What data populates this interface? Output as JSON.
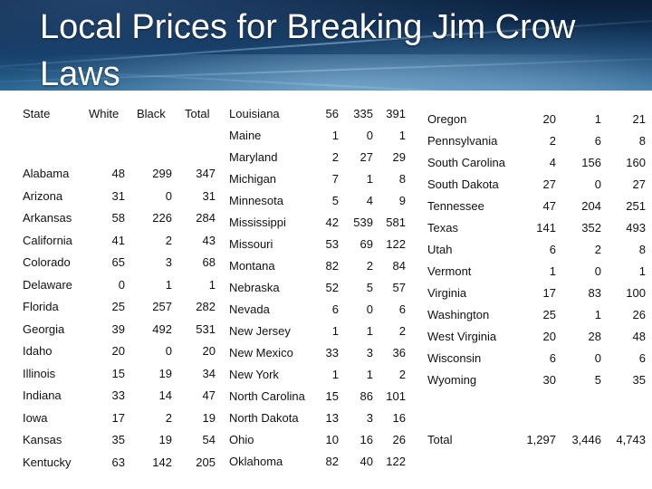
{
  "title": "Local Prices for Breaking Jim Crow Laws",
  "headers": {
    "state": "State",
    "white": "White",
    "black": "Black",
    "total": "Total"
  },
  "column1": [
    {
      "state": "Alabama",
      "white": "48",
      "black": "299",
      "total": "347"
    },
    {
      "state": "Arizona",
      "white": "31",
      "black": "0",
      "total": "31"
    },
    {
      "state": "Arkansas",
      "white": "58",
      "black": "226",
      "total": "284"
    },
    {
      "state": "California",
      "white": "41",
      "black": "2",
      "total": "43"
    },
    {
      "state": "Colorado",
      "white": "65",
      "black": "3",
      "total": "68"
    },
    {
      "state": "Delaware",
      "white": "0",
      "black": "1",
      "total": "1"
    },
    {
      "state": "Florida",
      "white": "25",
      "black": "257",
      "total": "282"
    },
    {
      "state": "Georgia",
      "white": "39",
      "black": "492",
      "total": "531"
    },
    {
      "state": "Idaho",
      "white": "20",
      "black": "0",
      "total": "20"
    },
    {
      "state": "Illinois",
      "white": "15",
      "black": "19",
      "total": "34"
    },
    {
      "state": "Indiana",
      "white": "33",
      "black": "14",
      "total": "47"
    },
    {
      "state": "Iowa",
      "white": "17",
      "black": "2",
      "total": "19"
    },
    {
      "state": "Kansas",
      "white": "35",
      "black": "19",
      "total": "54"
    },
    {
      "state": "Kentucky",
      "white": "63",
      "black": "142",
      "total": "205"
    }
  ],
  "column2": [
    {
      "state": "Louisiana",
      "white": "56",
      "black": "335",
      "total": "391"
    },
    {
      "state": "Maine",
      "white": "1",
      "black": "0",
      "total": "1"
    },
    {
      "state": "Maryland",
      "white": "2",
      "black": "27",
      "total": "29"
    },
    {
      "state": "Michigan",
      "white": "7",
      "black": "1",
      "total": "8"
    },
    {
      "state": "Minnesota",
      "white": "5",
      "black": "4",
      "total": "9"
    },
    {
      "state": "Mississippi",
      "white": "42",
      "black": "539",
      "total": "581"
    },
    {
      "state": "Missouri",
      "white": "53",
      "black": "69",
      "total": "122"
    },
    {
      "state": "Montana",
      "white": "82",
      "black": "2",
      "total": "84"
    },
    {
      "state": "Nebraska",
      "white": "52",
      "black": "5",
      "total": "57"
    },
    {
      "state": "Nevada",
      "white": "6",
      "black": "0",
      "total": "6"
    },
    {
      "state": "New Jersey",
      "white": "1",
      "black": "1",
      "total": "2"
    },
    {
      "state": "New Mexico",
      "white": "33",
      "black": "3",
      "total": "36"
    },
    {
      "state": "New York",
      "white": "1",
      "black": "1",
      "total": "2"
    },
    {
      "state": "North Carolina",
      "white": "15",
      "black": "86",
      "total": "101"
    },
    {
      "state": "North Dakota",
      "white": "13",
      "black": "3",
      "total": "16"
    },
    {
      "state": "Ohio",
      "white": "10",
      "black": "16",
      "total": "26"
    },
    {
      "state": "Oklahoma",
      "white": "82",
      "black": "40",
      "total": "122"
    }
  ],
  "column3": [
    {
      "state": "Oregon",
      "white": "20",
      "black": "1",
      "total": "21"
    },
    {
      "state": "Pennsylvania",
      "white": "2",
      "black": "6",
      "total": "8"
    },
    {
      "state": "South Carolina",
      "white": "4",
      "black": "156",
      "total": "160"
    },
    {
      "state": "South Dakota",
      "white": "27",
      "black": "0",
      "total": "27"
    },
    {
      "state": "Tennessee",
      "white": "47",
      "black": "204",
      "total": "251"
    },
    {
      "state": "Texas",
      "white": "141",
      "black": "352",
      "total": "493"
    },
    {
      "state": "Utah",
      "white": "6",
      "black": "2",
      "total": "8"
    },
    {
      "state": "Vermont",
      "white": "1",
      "black": "0",
      "total": "1"
    },
    {
      "state": "Virginia",
      "white": "17",
      "black": "83",
      "total": "100"
    },
    {
      "state": "Washington",
      "white": "25",
      "black": "1",
      "total": "26"
    },
    {
      "state": "West Virginia",
      "white": "20",
      "black": "28",
      "total": "48"
    },
    {
      "state": "Wisconsin",
      "white": "6",
      "black": "0",
      "total": "6"
    },
    {
      "state": "Wyoming",
      "white": "30",
      "black": "5",
      "total": "35"
    }
  ],
  "totals": {
    "state": "Total",
    "white": "1,297",
    "black": "3,446",
    "total": "4,743"
  },
  "colors": {
    "header_dark": "#0b1f3a",
    "header_mid": "#123c66",
    "header_light": "#2d6a96",
    "title_text": "#ffffff",
    "body_text": "#111111"
  }
}
